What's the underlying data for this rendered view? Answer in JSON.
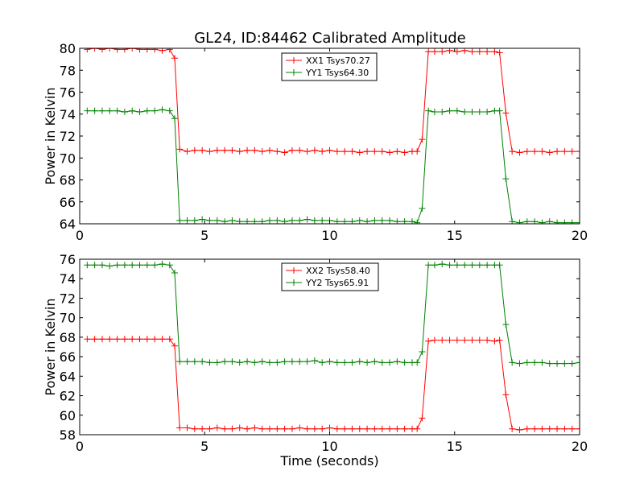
{
  "figure": {
    "title": "GL24, ID:84462 Calibrated Amplitude"
  },
  "chart_data": [
    {
      "type": "line",
      "title": "GL24, ID:84462 Calibrated Amplitude",
      "xlabel": "",
      "ylabel": "Power in Kelvin",
      "xlim": [
        0,
        20
      ],
      "ylim": [
        64,
        80
      ],
      "xticks": [
        0,
        5,
        10,
        15,
        20
      ],
      "yticks": [
        64,
        66,
        68,
        70,
        72,
        74,
        76,
        78,
        80
      ],
      "grid": false,
      "legend_position": "top-center",
      "x": [
        0.3,
        0.6,
        0.9,
        1.2,
        1.5,
        1.8,
        2.1,
        2.4,
        2.7,
        3.0,
        3.3,
        3.6,
        3.8,
        4.0,
        4.3,
        4.6,
        4.9,
        5.2,
        5.5,
        5.8,
        6.1,
        6.4,
        6.7,
        7.0,
        7.3,
        7.6,
        7.9,
        8.2,
        8.5,
        8.8,
        9.1,
        9.4,
        9.7,
        10.0,
        10.3,
        10.6,
        10.9,
        11.2,
        11.5,
        11.8,
        12.1,
        12.4,
        12.7,
        13.0,
        13.3,
        13.5,
        13.7,
        13.95,
        14.2,
        14.5,
        14.8,
        15.1,
        15.4,
        15.7,
        16.0,
        16.3,
        16.6,
        16.8,
        17.05,
        17.3,
        17.6,
        17.9,
        18.2,
        18.5,
        18.8,
        19.1,
        19.4,
        19.7,
        20.0
      ],
      "series": [
        {
          "name": "XX1 Tsys70.27",
          "color": "#ff0000",
          "values": [
            79.9,
            80.0,
            79.9,
            80.0,
            79.9,
            79.9,
            80.0,
            79.9,
            79.9,
            79.9,
            79.8,
            79.9,
            79.1,
            70.8,
            70.6,
            70.7,
            70.7,
            70.6,
            70.7,
            70.7,
            70.7,
            70.6,
            70.7,
            70.7,
            70.6,
            70.7,
            70.6,
            70.5,
            70.7,
            70.7,
            70.6,
            70.7,
            70.6,
            70.7,
            70.6,
            70.6,
            70.6,
            70.5,
            70.6,
            70.6,
            70.6,
            70.5,
            70.6,
            70.5,
            70.6,
            70.6,
            71.7,
            79.7,
            79.7,
            79.7,
            79.8,
            79.7,
            79.8,
            79.7,
            79.7,
            79.7,
            79.7,
            79.6,
            74.1,
            70.6,
            70.5,
            70.6,
            70.6,
            70.6,
            70.5,
            70.6,
            70.6,
            70.6,
            70.6
          ]
        },
        {
          "name": "YY1 Tsys64.30",
          "color": "#008000",
          "values": [
            74.3,
            74.3,
            74.3,
            74.3,
            74.3,
            74.2,
            74.3,
            74.2,
            74.3,
            74.3,
            74.4,
            74.3,
            73.6,
            64.3,
            64.3,
            64.3,
            64.4,
            64.3,
            64.3,
            64.2,
            64.3,
            64.2,
            64.2,
            64.2,
            64.2,
            64.3,
            64.3,
            64.2,
            64.3,
            64.3,
            64.4,
            64.3,
            64.3,
            64.3,
            64.2,
            64.2,
            64.2,
            64.3,
            64.2,
            64.3,
            64.3,
            64.3,
            64.2,
            64.2,
            64.2,
            64.1,
            65.4,
            74.3,
            74.2,
            74.2,
            74.3,
            74.3,
            74.2,
            74.2,
            74.2,
            74.2,
            74.3,
            74.3,
            68.1,
            64.2,
            64.1,
            64.2,
            64.2,
            64.1,
            64.2,
            64.1,
            64.1,
            64.1,
            64.1
          ]
        }
      ]
    },
    {
      "type": "line",
      "title": "",
      "xlabel": "Time (seconds)",
      "ylabel": "Power in Kelvin",
      "xlim": [
        0,
        20
      ],
      "ylim": [
        58,
        76
      ],
      "xticks": [
        0,
        5,
        10,
        15,
        20
      ],
      "yticks": [
        58,
        60,
        62,
        64,
        66,
        68,
        70,
        72,
        74,
        76
      ],
      "grid": false,
      "legend_position": "top-center",
      "x": [
        0.3,
        0.6,
        0.9,
        1.2,
        1.5,
        1.8,
        2.1,
        2.4,
        2.7,
        3.0,
        3.3,
        3.6,
        3.8,
        4.0,
        4.3,
        4.6,
        4.9,
        5.2,
        5.5,
        5.8,
        6.1,
        6.4,
        6.7,
        7.0,
        7.3,
        7.6,
        7.9,
        8.2,
        8.5,
        8.8,
        9.1,
        9.4,
        9.7,
        10.0,
        10.3,
        10.6,
        10.9,
        11.2,
        11.5,
        11.8,
        12.1,
        12.4,
        12.7,
        13.0,
        13.3,
        13.5,
        13.7,
        13.95,
        14.2,
        14.5,
        14.8,
        15.1,
        15.4,
        15.7,
        16.0,
        16.3,
        16.6,
        16.8,
        17.05,
        17.3,
        17.6,
        17.9,
        18.2,
        18.5,
        18.8,
        19.1,
        19.4,
        19.7,
        20.0
      ],
      "series": [
        {
          "name": "XX2 Tsys58.40",
          "color": "#ff0000",
          "values": [
            67.8,
            67.8,
            67.8,
            67.8,
            67.8,
            67.8,
            67.8,
            67.8,
            67.8,
            67.8,
            67.8,
            67.8,
            67.1,
            58.7,
            58.7,
            58.6,
            58.6,
            58.6,
            58.7,
            58.6,
            58.6,
            58.7,
            58.6,
            58.7,
            58.6,
            58.6,
            58.6,
            58.6,
            58.6,
            58.7,
            58.6,
            58.6,
            58.6,
            58.7,
            58.6,
            58.6,
            58.6,
            58.6,
            58.6,
            58.6,
            58.6,
            58.6,
            58.6,
            58.6,
            58.6,
            58.6,
            59.7,
            67.6,
            67.7,
            67.7,
            67.7,
            67.7,
            67.7,
            67.7,
            67.7,
            67.7,
            67.6,
            67.7,
            62.1,
            58.6,
            58.5,
            58.6,
            58.6,
            58.6,
            58.6,
            58.6,
            58.6,
            58.6,
            58.6
          ]
        },
        {
          "name": "YY2 Tsys65.91",
          "color": "#008000",
          "values": [
            75.4,
            75.4,
            75.4,
            75.3,
            75.4,
            75.4,
            75.4,
            75.4,
            75.4,
            75.4,
            75.5,
            75.4,
            74.6,
            65.5,
            65.5,
            65.5,
            65.5,
            65.4,
            65.4,
            65.5,
            65.5,
            65.4,
            65.5,
            65.4,
            65.5,
            65.4,
            65.4,
            65.5,
            65.5,
            65.5,
            65.5,
            65.6,
            65.4,
            65.5,
            65.4,
            65.4,
            65.4,
            65.5,
            65.4,
            65.5,
            65.4,
            65.4,
            65.5,
            65.4,
            65.4,
            65.4,
            66.5,
            75.4,
            75.4,
            75.5,
            75.4,
            75.4,
            75.4,
            75.4,
            75.4,
            75.4,
            75.4,
            75.4,
            69.3,
            65.4,
            65.3,
            65.4,
            65.4,
            65.4,
            65.3,
            65.3,
            65.3,
            65.3,
            65.4
          ]
        }
      ]
    }
  ]
}
